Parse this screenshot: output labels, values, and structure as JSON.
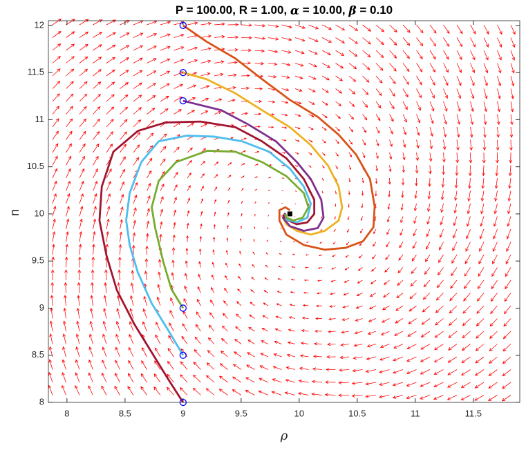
{
  "chart_data": {
    "type": "line",
    "title": {
      "parts": [
        "P = 100.00, R = 1.00, ",
        "α",
        " = 10.00, ",
        "β",
        " = 0.10"
      ]
    },
    "x_label": "ρ",
    "y_label": "n",
    "xlim": [
      7.84,
      11.9
    ],
    "ylim": [
      8,
      12.05
    ],
    "xticks": [
      8,
      8.5,
      9,
      9.5,
      10,
      10.5,
      11,
      11.5
    ],
    "yticks": [
      8,
      8.5,
      9,
      9.5,
      10,
      10.5,
      11,
      11.5,
      12
    ],
    "quiver_color": "#ff0000",
    "series": [
      {
        "color": "#d95319",
        "x": [
          9.0,
          9.2,
          9.45,
          9.68,
          9.92,
          10.16,
          10.34,
          10.49,
          10.61,
          10.65,
          10.64,
          10.55,
          10.4,
          10.22,
          10.04,
          9.89,
          9.83,
          9.83,
          9.88,
          9.92
        ],
        "y": [
          12,
          11.83,
          11.65,
          11.43,
          11.21,
          11.03,
          10.84,
          10.63,
          10.37,
          10.08,
          9.86,
          9.71,
          9.64,
          9.62,
          9.67,
          9.78,
          9.93,
          10.04,
          10.07,
          10.04
        ]
      },
      {
        "color": "#edb120",
        "x": [
          9.0,
          9.2,
          9.45,
          9.68,
          9.92,
          10.1,
          10.25,
          10.34,
          10.37,
          10.34,
          10.22,
          10.1,
          9.98,
          9.89,
          9.86,
          9.89
        ],
        "y": [
          11.5,
          11.43,
          11.28,
          11.1,
          10.92,
          10.73,
          10.51,
          10.29,
          10.07,
          9.93,
          9.82,
          9.78,
          9.82,
          9.89,
          9.96,
          10.0
        ]
      },
      {
        "color": "#7e2f8e",
        "x": [
          9.0,
          9.33,
          9.56,
          9.8,
          9.98,
          10.1,
          10.19,
          10.21,
          10.16,
          10.04,
          9.92,
          9.86,
          9.88
        ],
        "y": [
          11.2,
          11.1,
          10.95,
          10.77,
          10.55,
          10.37,
          10.15,
          9.96,
          9.85,
          9.82,
          9.87,
          9.96,
          10.01
        ]
      },
      {
        "color": "#a2142f",
        "x": [
          9.0,
          8.875,
          8.73,
          8.58,
          8.43,
          8.34,
          8.28,
          8.3,
          8.4,
          8.61,
          8.85,
          9.15,
          9.45,
          9.68,
          9.89,
          10.04,
          10.13,
          10.13,
          10.07,
          9.98,
          9.89,
          9.86
        ],
        "y": [
          8.0,
          8.24,
          8.53,
          8.83,
          9.19,
          9.56,
          9.93,
          10.29,
          10.66,
          10.88,
          10.97,
          10.98,
          10.92,
          10.77,
          10.59,
          10.37,
          10.15,
          10.0,
          9.91,
          9.89,
          9.94,
          9.99
        ]
      },
      {
        "color": "#4dbeee",
        "x": [
          9,
          8.875,
          8.73,
          8.61,
          8.54,
          8.51,
          8.54,
          8.64,
          8.79,
          9.03,
          9.27,
          9.51,
          9.74,
          9.92,
          10.04,
          10.1,
          10.07,
          9.98,
          9.89,
          9.88
        ],
        "y": [
          8.5,
          8.76,
          9.05,
          9.38,
          9.67,
          9.93,
          10.22,
          10.55,
          10.77,
          10.83,
          10.82,
          10.77,
          10.66,
          10.48,
          10.29,
          10.11,
          9.96,
          9.91,
          9.94,
          9.99
        ]
      },
      {
        "color": "#77ac30",
        "x": [
          9,
          8.9,
          8.83,
          8.76,
          8.73,
          8.79,
          8.94,
          9.21,
          9.45,
          9.68,
          9.89,
          10.04,
          10.08,
          10.03,
          9.95,
          9.89,
          9.88
        ],
        "y": [
          9.0,
          9.2,
          9.49,
          9.85,
          10.07,
          10.35,
          10.55,
          10.67,
          10.66,
          10.55,
          10.4,
          10.22,
          10.07,
          9.96,
          9.93,
          9.96,
          10.0
        ]
      }
    ],
    "start_points": {
      "color": "#0000ff",
      "marker": "circle",
      "x": [
        9,
        9,
        9,
        9,
        9,
        9
      ],
      "y": [
        12,
        11.5,
        11.2,
        9,
        8.5,
        8
      ]
    },
    "fixed_point": {
      "color": "#000000",
      "marker": "square",
      "x": [
        9.92
      ],
      "y": [
        10
      ]
    }
  }
}
